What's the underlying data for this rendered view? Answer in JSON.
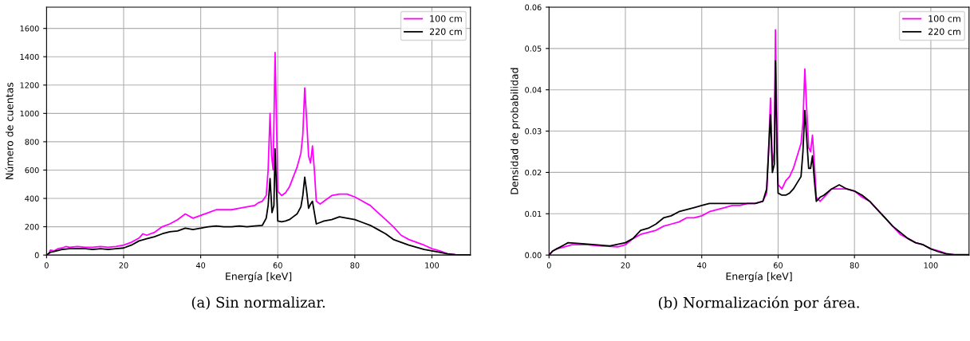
{
  "chart_data": [
    {
      "type": "line",
      "xlabel": "Energía [keV]",
      "ylabel": "Número de cuentas",
      "annotations": [
        "(a) Sin normalizar."
      ],
      "xlim": [
        0,
        110
      ],
      "ylim": [
        0,
        1750
      ],
      "xticks": [
        0,
        20,
        40,
        60,
        80,
        100
      ],
      "yticks": [
        0,
        200,
        400,
        600,
        800,
        1000,
        1200,
        1400,
        1600
      ],
      "grid": true,
      "legend": "top right",
      "marker": "none",
      "line_style": "solid",
      "series": [
        {
          "name": "100 cm",
          "color": "#ff00ff",
          "x": [
            0,
            0.5,
            1,
            2,
            3,
            4,
            5,
            6,
            8,
            10,
            12,
            14,
            16,
            18,
            20,
            22,
            24,
            25,
            26,
            28,
            30,
            32,
            34,
            36,
            38,
            40,
            42,
            44,
            46,
            48,
            50,
            52,
            54,
            55,
            56,
            57,
            57.5,
            58,
            58.4,
            58.8,
            59.3,
            59.7,
            60,
            61,
            62,
            63,
            64,
            65,
            66,
            66.5,
            67,
            67.5,
            68,
            68.5,
            69,
            69.5,
            70,
            71,
            72,
            74,
            76,
            78,
            80,
            82,
            84,
            86,
            88,
            90,
            92,
            94,
            96,
            98,
            100,
            102,
            104,
            106
          ],
          "values": [
            0,
            0,
            35,
            30,
            45,
            50,
            60,
            55,
            60,
            55,
            55,
            60,
            55,
            60,
            70,
            90,
            120,
            150,
            140,
            160,
            200,
            220,
            250,
            290,
            260,
            280,
            300,
            320,
            320,
            320,
            330,
            340,
            350,
            370,
            380,
            420,
            600,
            1000,
            700,
            600,
            1430,
            900,
            450,
            420,
            440,
            480,
            550,
            620,
            720,
            850,
            1180,
            950,
            700,
            650,
            770,
            600,
            380,
            360,
            380,
            420,
            430,
            430,
            410,
            380,
            350,
            300,
            250,
            200,
            140,
            110,
            90,
            70,
            45,
            30,
            10,
            3
          ]
        },
        {
          "name": "220 cm",
          "color": "#000000",
          "x": [
            0,
            1,
            2,
            4,
            6,
            8,
            10,
            12,
            14,
            16,
            18,
            20,
            22,
            24,
            26,
            28,
            30,
            32,
            34,
            36,
            38,
            40,
            42,
            44,
            46,
            48,
            50,
            52,
            54,
            56,
            57,
            57.5,
            58,
            58.5,
            59,
            59.3,
            59.7,
            60,
            61,
            62,
            63,
            64,
            65,
            66,
            66.5,
            67,
            67.5,
            68,
            68.5,
            69,
            69.5,
            70,
            71,
            72,
            74,
            76,
            78,
            80,
            82,
            84,
            86,
            88,
            90,
            92,
            94,
            96,
            98,
            100,
            102,
            104,
            106,
            108,
            110
          ],
          "values": [
            0,
            20,
            25,
            40,
            45,
            45,
            45,
            40,
            45,
            40,
            45,
            50,
            70,
            100,
            115,
            130,
            150,
            165,
            170,
            190,
            180,
            190,
            200,
            205,
            200,
            200,
            205,
            200,
            205,
            210,
            260,
            350,
            540,
            300,
            350,
            750,
            450,
            240,
            235,
            240,
            250,
            270,
            290,
            340,
            420,
            550,
            450,
            330,
            360,
            380,
            300,
            220,
            230,
            240,
            250,
            270,
            260,
            250,
            230,
            210,
            180,
            150,
            110,
            90,
            70,
            55,
            40,
            30,
            20,
            8,
            3,
            2,
            2
          ]
        }
      ]
    },
    {
      "type": "line",
      "xlabel": "Energía [keV]",
      "ylabel": "Densidad de probabilidad",
      "annotations": [
        "(b) Normalización por área."
      ],
      "xlim": [
        0,
        110
      ],
      "ylim": [
        0,
        0.06
      ],
      "xticks": [
        0,
        20,
        40,
        60,
        80,
        100
      ],
      "yticks": [
        {
          "value": 0,
          "label": "0.00"
        },
        0.01,
        0.02,
        0.03,
        0.04,
        0.05,
        0.06
      ],
      "grid": true,
      "legend": "top right",
      "marker": "none",
      "line_style": "solid",
      "series": [
        {
          "name": "100 cm",
          "color": "#ff00ff",
          "x": [
            0,
            1,
            2,
            4,
            6,
            10,
            14,
            18,
            20,
            22,
            24,
            26,
            28,
            30,
            32,
            34,
            36,
            38,
            40,
            42,
            44,
            46,
            48,
            50,
            52,
            54,
            56,
            57,
            57.5,
            58,
            58.5,
            59,
            59.3,
            59.7,
            60,
            61,
            62,
            63,
            64,
            65,
            66,
            66.5,
            67,
            67.5,
            68,
            68.5,
            69,
            69.5,
            70,
            71,
            72,
            74,
            76,
            78,
            80,
            82,
            84,
            86,
            88,
            90,
            92,
            94,
            96,
            98,
            100,
            102,
            104,
            106
          ],
          "values": [
            0,
            0.001,
            0.0015,
            0.002,
            0.0025,
            0.0025,
            0.0022,
            0.002,
            0.0025,
            0.004,
            0.005,
            0.0055,
            0.006,
            0.007,
            0.0075,
            0.008,
            0.009,
            0.009,
            0.0095,
            0.0105,
            0.011,
            0.0115,
            0.012,
            0.012,
            0.0125,
            0.0125,
            0.013,
            0.015,
            0.025,
            0.038,
            0.022,
            0.025,
            0.0545,
            0.03,
            0.017,
            0.016,
            0.018,
            0.019,
            0.021,
            0.024,
            0.027,
            0.032,
            0.045,
            0.035,
            0.026,
            0.025,
            0.029,
            0.022,
            0.014,
            0.013,
            0.014,
            0.016,
            0.016,
            0.016,
            0.0155,
            0.014,
            0.013,
            0.011,
            0.009,
            0.007,
            0.005,
            0.004,
            0.003,
            0.0025,
            0.0015,
            0.001,
            0.0004,
            0.0001
          ]
        },
        {
          "name": "220 cm",
          "color": "#000000",
          "x": [
            0,
            1,
            2,
            4,
            5,
            8,
            12,
            16,
            20,
            22,
            24,
            26,
            28,
            30,
            32,
            34,
            36,
            38,
            40,
            42,
            44,
            46,
            48,
            50,
            52,
            54,
            56,
            57,
            57.5,
            58,
            58.5,
            59,
            59.3,
            59.7,
            60,
            61,
            62,
            63,
            64,
            65,
            66,
            66.5,
            67,
            67.5,
            68,
            68.5,
            69,
            69.5,
            70,
            71,
            72,
            74,
            76,
            78,
            80,
            82,
            84,
            86,
            88,
            90,
            92,
            94,
            96,
            98,
            100,
            102,
            104,
            106,
            110
          ],
          "values": [
            0,
            0.001,
            0.0015,
            0.0025,
            0.003,
            0.0028,
            0.0025,
            0.0022,
            0.003,
            0.004,
            0.006,
            0.0065,
            0.0075,
            0.009,
            0.0095,
            0.0105,
            0.011,
            0.0115,
            0.012,
            0.0125,
            0.0125,
            0.0125,
            0.0125,
            0.0125,
            0.0125,
            0.0125,
            0.013,
            0.016,
            0.025,
            0.034,
            0.02,
            0.022,
            0.047,
            0.025,
            0.015,
            0.0145,
            0.0145,
            0.015,
            0.016,
            0.0175,
            0.019,
            0.025,
            0.035,
            0.028,
            0.021,
            0.021,
            0.024,
            0.018,
            0.013,
            0.014,
            0.0145,
            0.016,
            0.017,
            0.016,
            0.0155,
            0.0145,
            0.013,
            0.011,
            0.009,
            0.007,
            0.0055,
            0.004,
            0.003,
            0.0025,
            0.0015,
            0.0008,
            0.0003,
            0.0001,
            0.0001
          ]
        }
      ]
    }
  ]
}
